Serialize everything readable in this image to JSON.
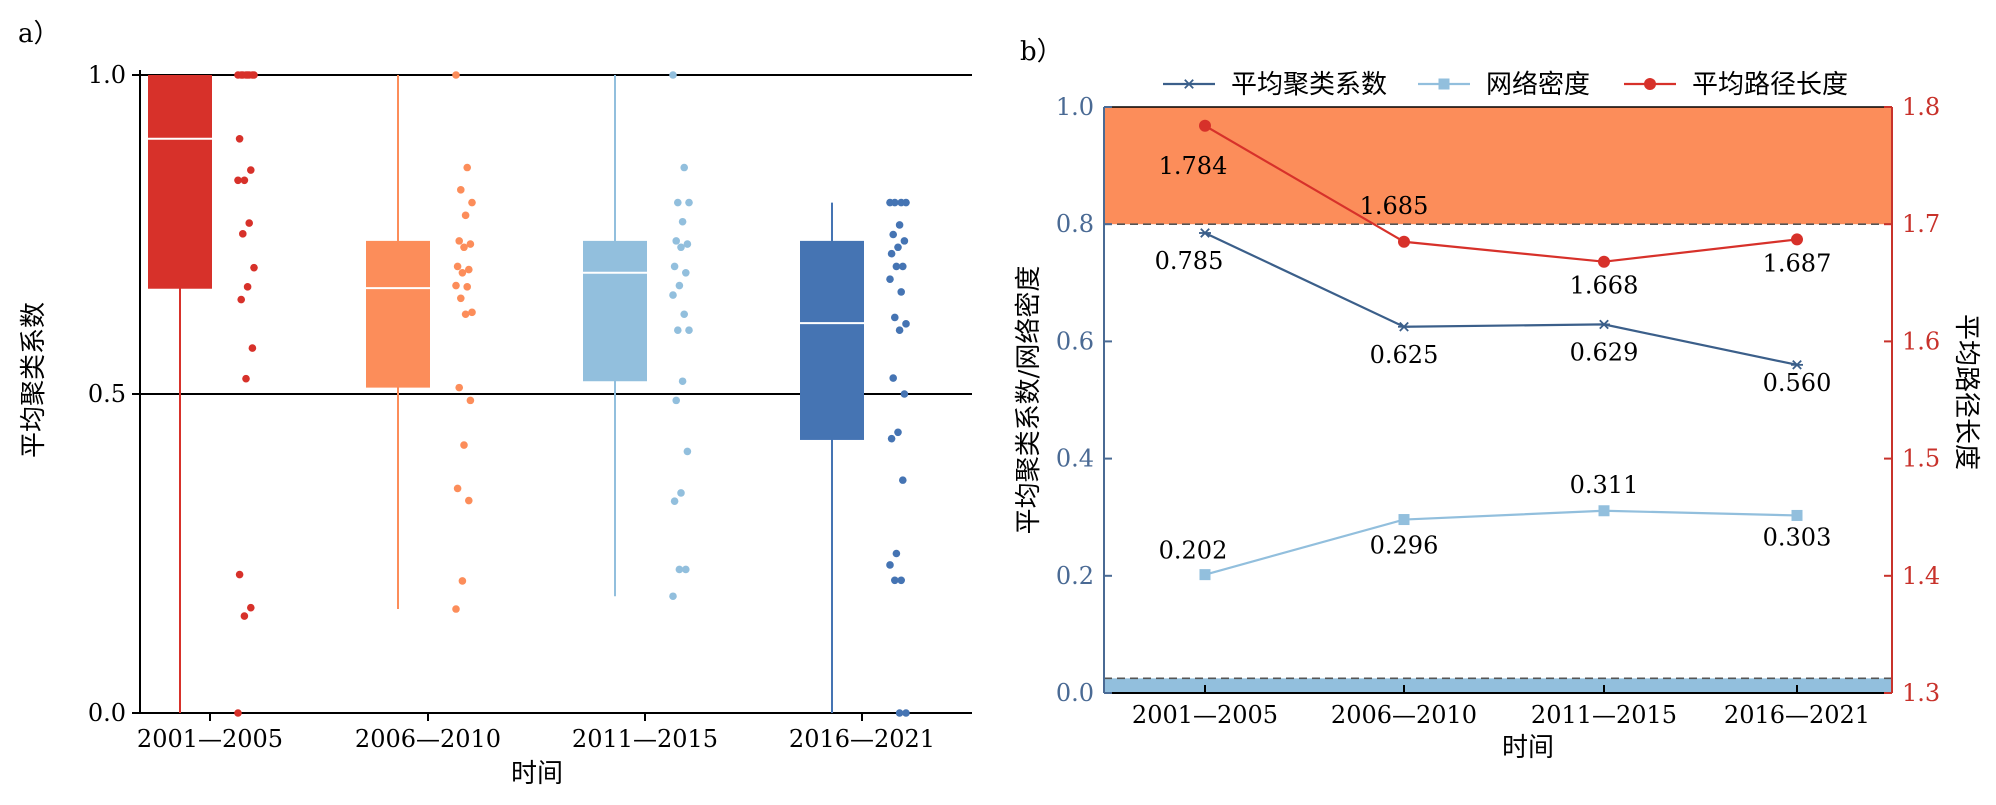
{
  "chart_data": [
    {
      "panel_label": "a）",
      "type": "box",
      "ylabel": "平均聚类系数",
      "xlabel": "时间",
      "ylim": [
        0,
        1
      ],
      "yticks": [
        0,
        0.5,
        1
      ],
      "ytick_labels": [
        "0.0",
        "0.5",
        "1.0"
      ],
      "grid": "horizontal at major ticks",
      "categories": [
        "2001—2005",
        "2006—2010",
        "2011—2015",
        "2016—2021"
      ],
      "colors": [
        "#d7312a",
        "#fc8d5a",
        "#92bfdd",
        "#4574b3"
      ],
      "boxes": [
        {
          "min": 0.0,
          "q1": 0.665,
          "median": 0.9,
          "q3": 1.0,
          "max": 1.0
        },
        {
          "min": 0.163,
          "q1": 0.51,
          "median": 0.666,
          "q3": 0.74,
          "max": 1.0
        },
        {
          "min": 0.183,
          "q1": 0.52,
          "median": 0.69,
          "q3": 0.74,
          "max": 1.0
        },
        {
          "min": 0.0,
          "q1": 0.428,
          "median": 0.611,
          "q3": 0.74,
          "max": 0.8
        }
      ],
      "points": [
        [
          1.0,
          1.0,
          1.0,
          1.0,
          1.0,
          1.0,
          1.0,
          1.0,
          0.9,
          0.851,
          0.835,
          0.835,
          0.768,
          0.751,
          0.698,
          0.668,
          0.648,
          0.572,
          0.524,
          0.217,
          0.165,
          0.152,
          0.0
        ],
        [
          1.0,
          0.855,
          0.82,
          0.8,
          0.78,
          0.74,
          0.735,
          0.73,
          0.7,
          0.695,
          0.69,
          0.67,
          0.668,
          0.65,
          0.628,
          0.625,
          0.51,
          0.49,
          0.42,
          0.352,
          0.333,
          0.207,
          0.163
        ],
        [
          1.0,
          0.855,
          0.8,
          0.8,
          0.77,
          0.74,
          0.735,
          0.73,
          0.7,
          0.69,
          0.67,
          0.655,
          0.625,
          0.6,
          0.6,
          0.52,
          0.49,
          0.41,
          0.345,
          0.332,
          0.225,
          0.225,
          0.183
        ],
        [
          0.8,
          0.8,
          0.8,
          0.8,
          0.765,
          0.75,
          0.74,
          0.73,
          0.72,
          0.7,
          0.7,
          0.68,
          0.66,
          0.62,
          0.61,
          0.6,
          0.525,
          0.5,
          0.44,
          0.43,
          0.365,
          0.25,
          0.232,
          0.208,
          0.208,
          0.0,
          0.0
        ]
      ]
    },
    {
      "panel_label": "b）",
      "type": "line",
      "categories": [
        "2001—2005",
        "2006—2010",
        "2011—2015",
        "2016—2021"
      ],
      "xlabel": "时间",
      "ylabel_left": "平均聚类系数/网络密度",
      "ylabel_right": "平均路径长度",
      "ylim_left": [
        0,
        1
      ],
      "yticks_left": [
        "0.0",
        "0.2",
        "0.4",
        "0.6",
        "0.8",
        "1.0"
      ],
      "ylim_right": [
        1.3,
        1.8
      ],
      "yticks_right": [
        "1.3",
        "1.4",
        "1.5",
        "1.6",
        "1.7",
        "1.8"
      ],
      "legend_position": "top",
      "shaded_bands": [
        {
          "axis": "left",
          "from": 0.8,
          "to": 1.0,
          "color": "#fc8d5a"
        },
        {
          "axis": "left",
          "from": 0.0,
          "to": 0.025,
          "color": "#92bfdd"
        }
      ],
      "series": [
        {
          "name": "平均聚类系数",
          "axis": "left",
          "marker": "star",
          "color": "#3b5f8a",
          "values": [
            0.785,
            0.625,
            0.629,
            0.56
          ],
          "labels": [
            "0.785",
            "0.625",
            "0.629",
            "0.560"
          ]
        },
        {
          "name": "网络密度",
          "axis": "left",
          "marker": "square",
          "color": "#92bfdd",
          "values": [
            0.202,
            0.296,
            0.311,
            0.303
          ],
          "labels": [
            "0.202",
            "0.296",
            "0.311",
            "0.303"
          ]
        },
        {
          "name": "平均路径长度",
          "axis": "right",
          "marker": "circle",
          "color": "#d7312a",
          "values": [
            1.784,
            1.685,
            1.668,
            1.687
          ],
          "labels": [
            "1.784",
            "1.685",
            "1.668",
            "1.687"
          ]
        }
      ]
    }
  ]
}
